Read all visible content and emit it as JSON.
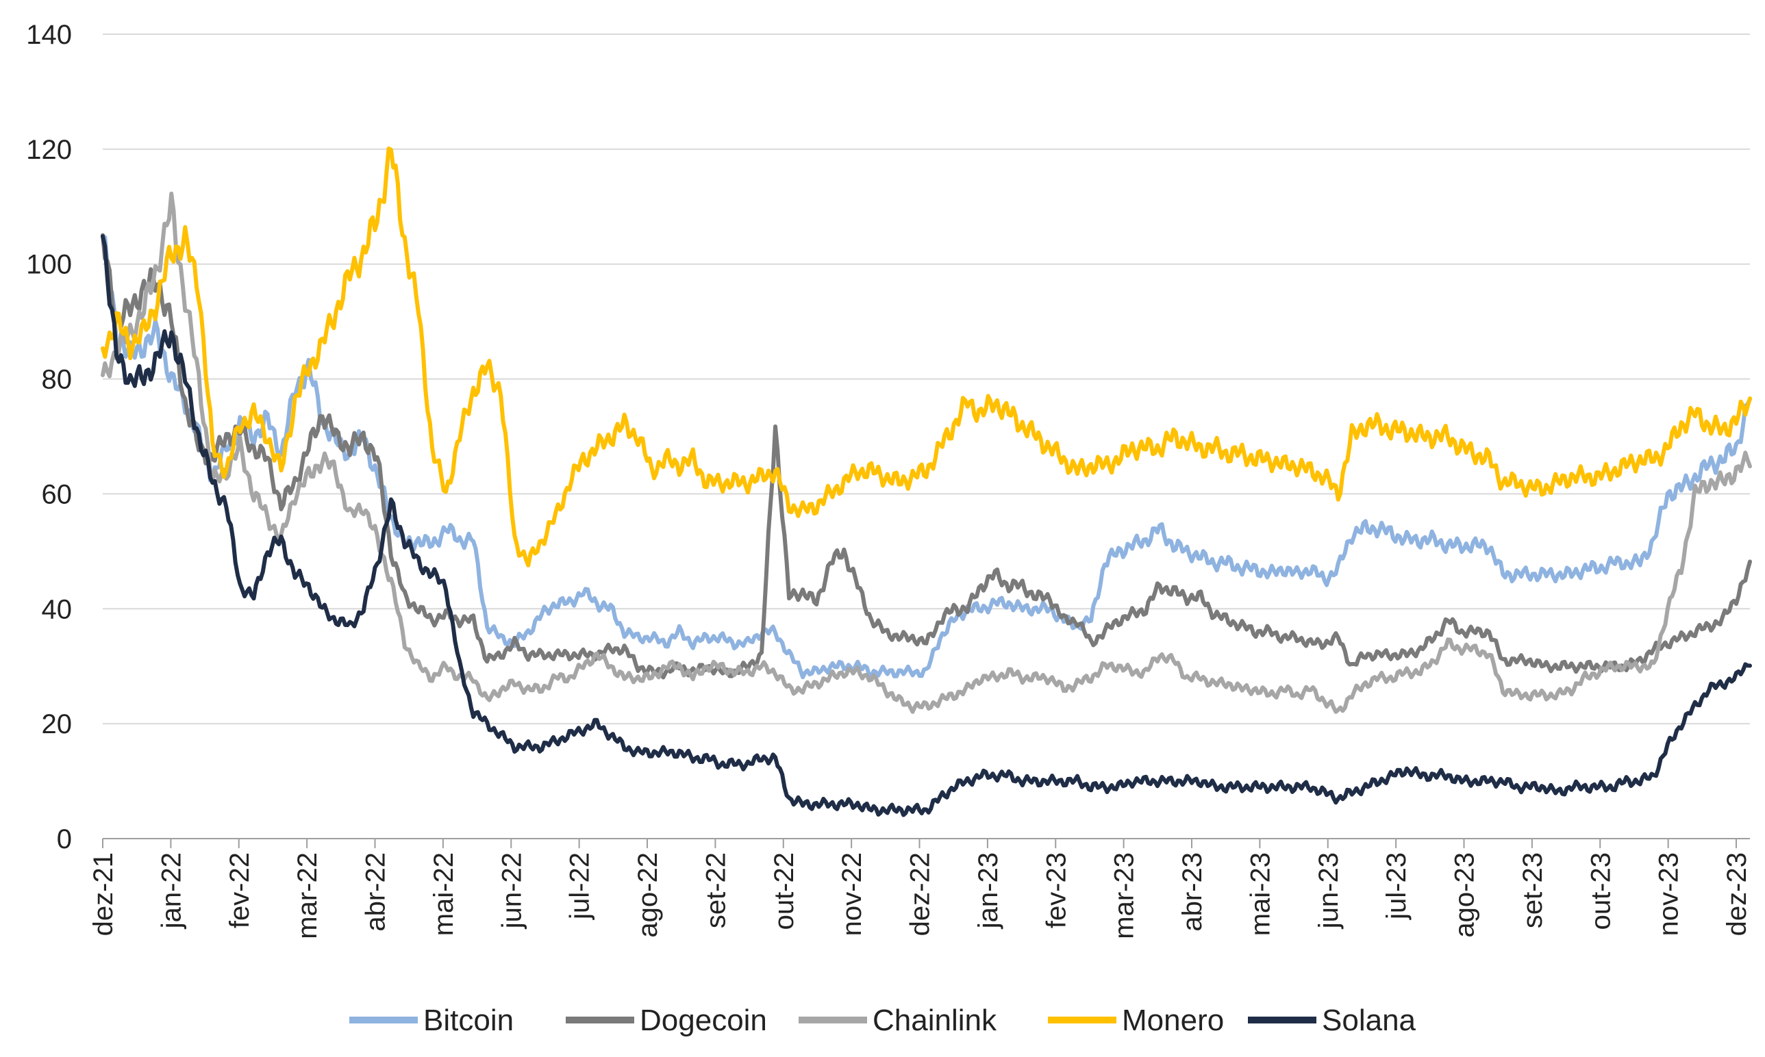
{
  "chart_data": {
    "type": "line",
    "title": "",
    "xlabel": "",
    "ylabel": "",
    "ylim": [
      0,
      140
    ],
    "yticks": [
      0,
      20,
      40,
      60,
      80,
      100,
      120,
      140
    ],
    "grid": "horizontal",
    "legend_position": "bottom-center",
    "x_tick_labels": [
      "dez-21",
      "jan-22",
      "fev-22",
      "mar-22",
      "abr-22",
      "mai-22",
      "jun-22",
      "jul-22",
      "ago-22",
      "set-22",
      "out-22",
      "nov-22",
      "dez-22",
      "jan-23",
      "fev-23",
      "mar-23",
      "abr-23",
      "mai-23",
      "jun-23",
      "jul-23",
      "ago-23",
      "set-23",
      "out-23",
      "nov-23",
      "dez-23"
    ],
    "series": [
      {
        "name": "Bitcoin",
        "color": "#8fb3e0",
        "values": [
          105,
          88,
          84,
          86,
          88,
          80,
          76,
          70,
          63,
          68,
          72,
          70,
          73,
          67,
          78,
          82,
          73,
          69,
          67,
          70,
          63,
          56,
          51,
          52,
          51,
          54,
          52,
          52,
          37,
          35,
          34,
          36,
          39,
          41,
          41,
          43,
          41,
          40,
          36,
          35,
          35,
          34,
          36,
          34,
          35,
          35,
          34,
          34,
          36,
          36,
          32,
          29,
          29,
          30,
          30,
          30,
          29,
          29,
          29,
          29,
          29,
          35,
          38,
          40,
          40,
          41,
          41,
          40,
          40,
          40,
          38,
          37,
          38,
          48,
          50,
          51,
          52,
          54,
          51,
          50,
          49,
          48,
          48,
          47,
          47,
          46,
          47,
          46,
          47,
          45,
          47,
          53,
          54,
          54,
          53,
          52,
          52,
          52,
          51,
          51,
          51,
          51,
          46,
          46,
          46,
          46,
          46,
          46,
          47,
          47,
          48,
          48,
          48,
          52,
          60,
          61,
          63,
          65,
          66,
          68,
          77
        ]
      },
      {
        "name": "Dogecoin",
        "color": "#7a7a7a",
        "values": [
          104,
          90,
          92,
          96,
          97,
          90,
          76,
          68,
          66,
          70,
          71,
          68,
          66,
          58,
          62,
          68,
          74,
          70,
          68,
          70,
          66,
          50,
          42,
          40,
          38,
          39,
          38,
          38,
          31,
          32,
          34,
          32,
          32,
          32,
          32,
          32,
          32,
          33,
          33,
          30,
          29,
          29,
          30,
          29,
          30,
          29,
          29,
          30,
          32,
          72,
          42,
          43,
          41,
          48,
          50,
          44,
          38,
          36,
          35,
          35,
          34,
          38,
          40,
          40,
          44,
          46,
          44,
          44,
          42,
          42,
          38,
          38,
          34,
          36,
          38,
          39,
          40,
          44,
          43,
          42,
          42,
          39,
          38,
          37,
          36,
          36,
          35,
          35,
          34,
          34,
          35,
          30,
          32,
          32,
          32,
          32,
          33,
          35,
          38,
          36,
          36,
          36,
          31,
          31,
          31,
          30,
          30,
          30,
          30,
          30,
          30,
          30,
          31,
          33,
          34,
          35,
          36,
          37,
          38,
          42,
          47
        ]
      },
      {
        "name": "Chainlink",
        "color": "#a6a6a6",
        "values": [
          80,
          85,
          88,
          92,
          100,
          110,
          94,
          80,
          62,
          64,
          68,
          60,
          56,
          52,
          60,
          63,
          66,
          64,
          56,
          58,
          52,
          45,
          34,
          30,
          28,
          30,
          28,
          28,
          24,
          26,
          27,
          26,
          26,
          28,
          28,
          30,
          32,
          30,
          28,
          28,
          28,
          30,
          30,
          28,
          30,
          30,
          29,
          29,
          30,
          29,
          26,
          26,
          27,
          28,
          29,
          29,
          28,
          26,
          24,
          23,
          23,
          24,
          25,
          26,
          28,
          28,
          29,
          28,
          28,
          28,
          26,
          27,
          28,
          30,
          30,
          29,
          29,
          32,
          31,
          28,
          28,
          27,
          27,
          26,
          26,
          25,
          26,
          25,
          26,
          24,
          22,
          25,
          27,
          28,
          28,
          29,
          29,
          31,
          34,
          33,
          33,
          32,
          26,
          25,
          25,
          25,
          25,
          26,
          28,
          29,
          30,
          30,
          30,
          30,
          40,
          47,
          60,
          62,
          62,
          64,
          66
        ]
      },
      {
        "name": "Monero",
        "color": "#ffc000",
        "values": [
          85,
          90,
          86,
          88,
          94,
          102,
          104,
          96,
          68,
          64,
          72,
          74,
          70,
          64,
          76,
          82,
          86,
          92,
          98,
          102,
          108,
          120,
          104,
          92,
          68,
          60,
          70,
          78,
          82,
          78,
          52,
          48,
          52,
          56,
          62,
          66,
          68,
          70,
          72,
          70,
          64,
          66,
          65,
          66,
          62,
          62,
          62,
          62,
          63,
          64,
          58,
          57,
          58,
          60,
          62,
          64,
          64,
          63,
          62,
          63,
          64,
          68,
          72,
          76,
          74,
          76,
          74,
          72,
          70,
          68,
          66,
          64,
          65,
          65,
          66,
          68,
          68,
          68,
          70,
          69,
          68,
          68,
          67,
          67,
          66,
          66,
          65,
          65,
          64,
          63,
          60,
          70,
          72,
          72,
          71,
          71,
          70,
          70,
          70,
          68,
          67,
          66,
          62,
          62,
          61,
          61,
          62,
          63,
          63,
          63,
          64,
          65,
          66,
          66,
          68,
          72,
          74,
          72,
          71,
          73,
          76
        ]
      },
      {
        "name": "Solana",
        "color": "#1f2d47",
        "values": [
          106,
          84,
          80,
          80,
          84,
          88,
          80,
          70,
          62,
          58,
          44,
          42,
          50,
          52,
          46,
          44,
          40,
          38,
          37,
          40,
          48,
          58,
          52,
          48,
          46,
          44,
          30,
          22,
          20,
          18,
          16,
          16,
          16,
          17,
          18,
          19,
          20,
          18,
          16,
          15,
          15,
          15,
          15,
          14,
          14,
          13,
          13,
          13,
          14,
          14,
          7,
          6,
          6,
          6,
          6,
          6,
          5,
          5,
          5,
          5,
          5,
          7,
          9,
          10,
          11,
          11,
          11,
          10,
          10,
          10,
          10,
          10,
          9,
          9,
          9,
          10,
          10,
          10,
          10,
          10,
          10,
          9,
          9,
          9,
          9,
          9,
          9,
          9,
          9,
          8,
          7,
          8,
          9,
          10,
          11,
          12,
          11,
          11,
          11,
          10,
          10,
          10,
          10,
          9,
          9,
          9,
          8,
          9,
          9,
          9,
          9,
          10,
          10,
          11,
          16,
          20,
          23,
          26,
          27,
          28,
          31
        ]
      }
    ]
  }
}
